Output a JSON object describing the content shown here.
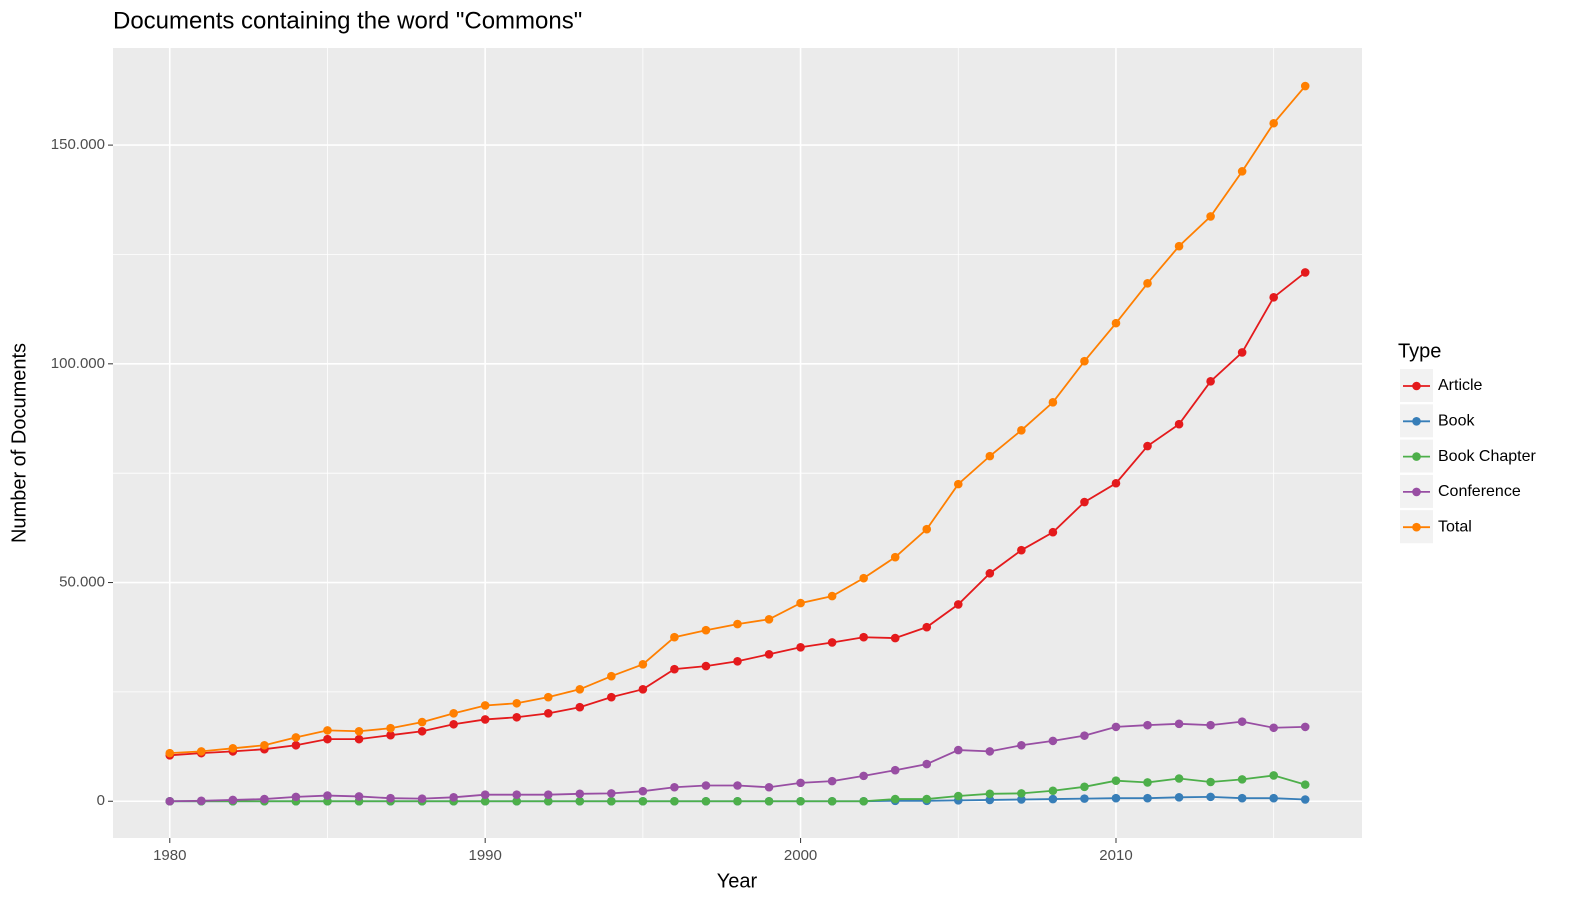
{
  "chart_data": {
    "type": "line",
    "title": "Documents containing the word \"Commons\"",
    "x_label": "Year",
    "y_label": "Number of Documents",
    "legend_title": "Type",
    "legend_position": "right",
    "grid": true,
    "x": [
      1980,
      1981,
      1982,
      1983,
      1984,
      1985,
      1986,
      1987,
      1988,
      1989,
      1990,
      1991,
      1992,
      1993,
      1994,
      1995,
      1996,
      1997,
      1998,
      1999,
      2000,
      2001,
      2002,
      2003,
      2004,
      2005,
      2006,
      2007,
      2008,
      2009,
      2010,
      2011,
      2012,
      2013,
      2014,
      2015,
      2016
    ],
    "xlim": [
      1978.2,
      2017.8
    ],
    "xticks": [
      1980,
      1990,
      2000,
      2010
    ],
    "ylim": [
      -8400,
      172200
    ],
    "yticks": [
      0,
      {
        "value": 50000,
        "label": "50.000"
      },
      {
        "value": 100000,
        "label": "100.000"
      },
      {
        "value": 150000,
        "label": "150.000"
      }
    ],
    "series": [
      {
        "name": "Article",
        "color": "#e41a1c",
        "values": [
          10500,
          11000,
          11400,
          11900,
          12800,
          14200,
          14200,
          15100,
          16000,
          17600,
          18700,
          19200,
          20100,
          21500,
          23800,
          25600,
          30200,
          30900,
          32000,
          33600,
          35200,
          36300,
          37500,
          37300,
          39800,
          45000,
          52100,
          57400,
          61500,
          68400,
          72700,
          81200,
          86200,
          96000,
          102600,
          115200,
          120900
        ]
      },
      {
        "name": "Book",
        "color": "#377eb8",
        "values": [
          0,
          0,
          0,
          0,
          0,
          0,
          0,
          0,
          0,
          0,
          0,
          0,
          0,
          0,
          0,
          0,
          0,
          0,
          0,
          0,
          0,
          0,
          0,
          100,
          100,
          200,
          300,
          400,
          500,
          600,
          700,
          700,
          900,
          1000,
          700,
          700,
          400
        ]
      },
      {
        "name": "Book Chapter",
        "color": "#4daf4a",
        "values": [
          0,
          0,
          0,
          0,
          0,
          0,
          0,
          0,
          0,
          0,
          0,
          0,
          0,
          0,
          0,
          0,
          0,
          0,
          0,
          0,
          0,
          0,
          0,
          500,
          500,
          1200,
          1700,
          1800,
          2400,
          3300,
          4700,
          4300,
          5200,
          4400,
          5000,
          5900,
          3800
        ]
      },
      {
        "name": "Conference",
        "color": "#984ea3",
        "values": [
          0,
          100,
          300,
          500,
          1000,
          1300,
          1100,
          700,
          600,
          900,
          1500,
          1500,
          1500,
          1700,
          1800,
          2300,
          3200,
          3600,
          3600,
          3200,
          4200,
          4600,
          5800,
          7100,
          8500,
          11700,
          11400,
          12800,
          13800,
          15000,
          17000,
          17400,
          17700,
          17400,
          18200,
          16800,
          17000
        ]
      },
      {
        "name": "Total",
        "color": "#ff7f00",
        "values": [
          11000,
          11400,
          12100,
          12800,
          14600,
          16200,
          16000,
          16700,
          18100,
          20100,
          21900,
          22400,
          23800,
          25600,
          28600,
          31300,
          37500,
          39100,
          40500,
          41600,
          45300,
          46900,
          51000,
          55800,
          62200,
          72500,
          78900,
          84800,
          91200,
          100600,
          109300,
          118400,
          126900,
          133700,
          144000,
          155000,
          163500
        ]
      }
    ]
  }
}
